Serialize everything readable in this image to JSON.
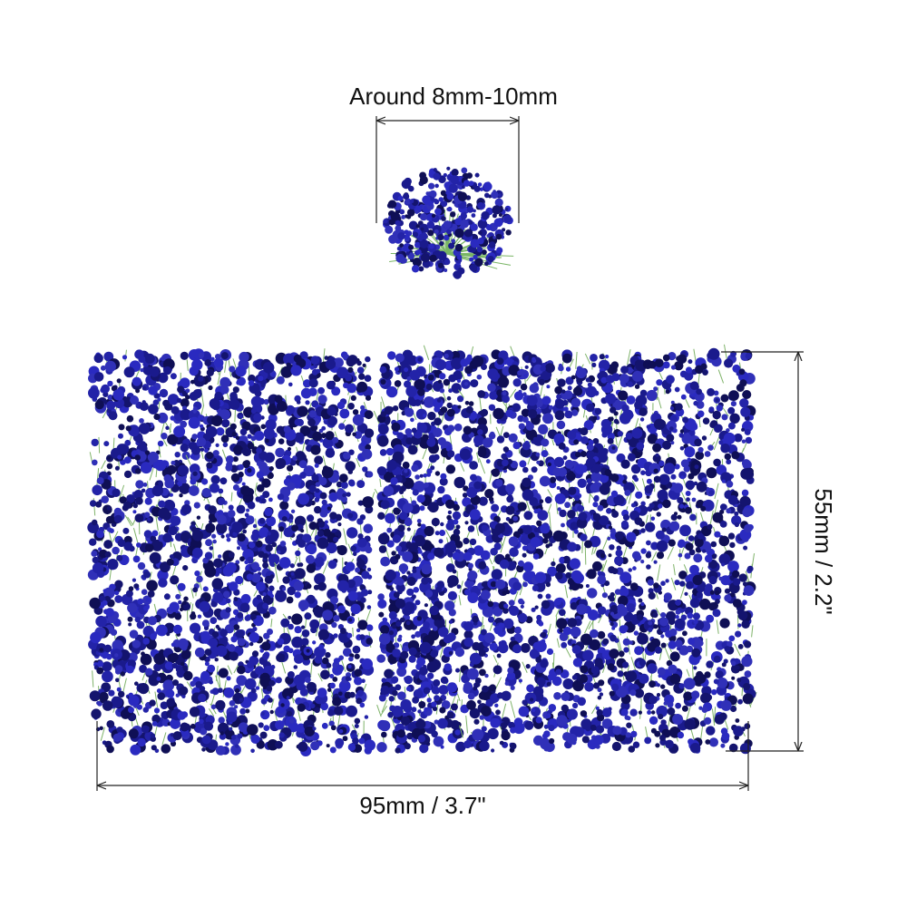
{
  "dimensions": {
    "tuft_width": "Around 8mm-10mm",
    "mat_width": "95mm / 3.7\"",
    "mat_height": "55mm / 2.2\""
  }
}
